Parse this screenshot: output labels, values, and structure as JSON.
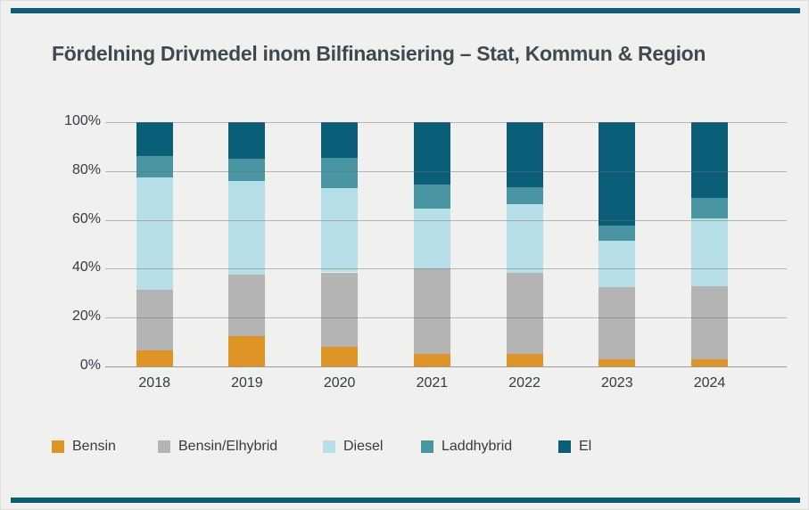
{
  "page": {
    "background": "#F0F0EF",
    "accent_color": "#0B5E77",
    "border_color": "#DEDEDE"
  },
  "chart_data": {
    "type": "bar",
    "stacked": true,
    "percent": true,
    "title": "Fördelning Drivmedel inom Bilfinansiering – Stat, Kommun & Region",
    "title_color": "#3E4A52",
    "categories": [
      "2018",
      "2019",
      "2020",
      "2021",
      "2022",
      "2023",
      "2024"
    ],
    "series": [
      {
        "name": "Bensin",
        "color": "#DE9526",
        "values": [
          6.5,
          12.5,
          8,
          5,
          5,
          3,
          3
        ]
      },
      {
        "name": "Bensin/Elhybrid",
        "color": "#B4B4B4",
        "values": [
          25,
          25,
          30.5,
          35,
          33.5,
          29.5,
          30
        ]
      },
      {
        "name": "Diesel",
        "color": "#B6DFE7",
        "values": [
          46,
          38.5,
          34.5,
          24.5,
          28,
          19,
          27.5
        ]
      },
      {
        "name": "Laddhybrid",
        "color": "#4A95A4",
        "values": [
          8.5,
          9,
          12.5,
          10,
          7,
          6,
          8.5
        ]
      },
      {
        "name": "El",
        "color": "#0B5E77",
        "values": [
          14,
          15,
          14.5,
          25.5,
          26.5,
          42.5,
          31
        ]
      }
    ],
    "yticks": [
      "0%",
      "20%",
      "40%",
      "60%",
      "80%",
      "100%"
    ],
    "ylim": [
      0,
      100
    ],
    "grid": true,
    "grid_color": "#A8A8A8",
    "axis_color": "#9A9A9A",
    "tick_label_color": "#343B43",
    "legend_position": "bottom"
  }
}
